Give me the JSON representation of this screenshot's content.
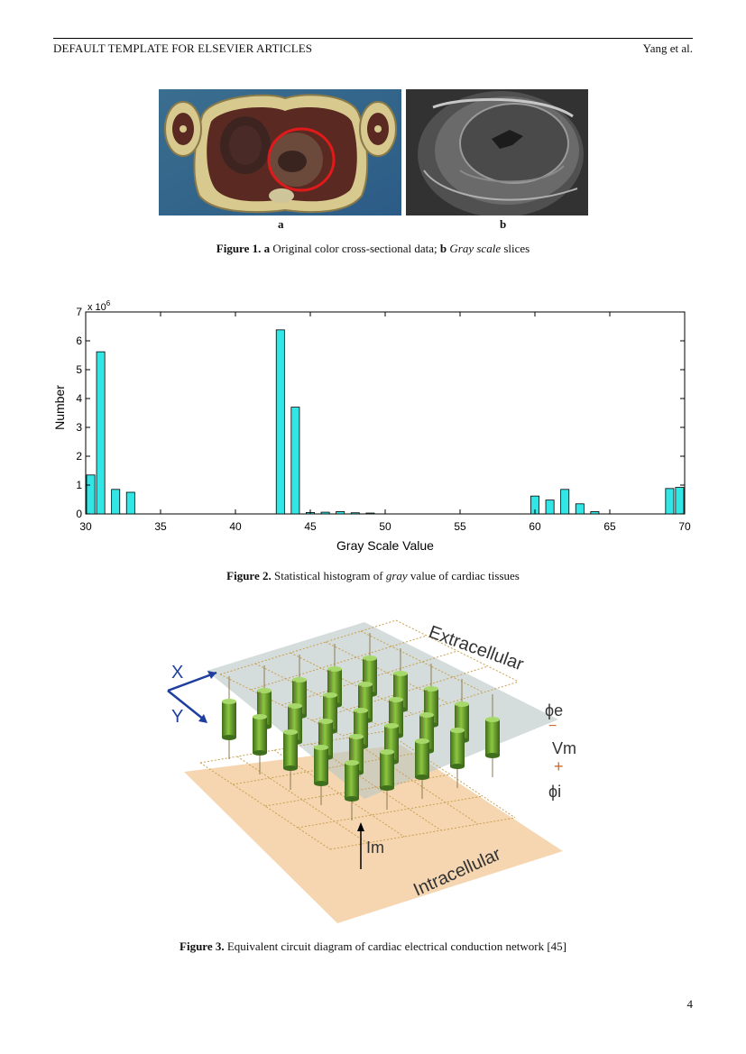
{
  "header": {
    "left": "DEFAULT TEMPLATE FOR ELSEVIER ARTICLES",
    "right": "Yang et al."
  },
  "figure1": {
    "label_a": "a",
    "label_b": "b",
    "caption_num": "Figure 1.",
    "caption_a": "a",
    "caption_mid": " Original color cross-sectional data; ",
    "caption_b": "b",
    "caption_italic": "Gray scale",
    "caption_end": " slices"
  },
  "figure2": {
    "caption_num": "Figure 2.",
    "caption_pre": " Statistical histogram of ",
    "caption_italic": "gray",
    "caption_post": " value of cardiac tissues"
  },
  "figure3": {
    "caption_num": "Figure 3.",
    "caption_text": " Equivalent circuit diagram of cardiac electrical conduction network [45]",
    "labels": {
      "extracellular": "Extracellular",
      "intracellular": "Intracellular",
      "x": "X",
      "y": "Y",
      "phi_e": "ϕe",
      "vm": "Vm",
      "plus": "+",
      "minus": "−",
      "phi_i": "ϕi",
      "im": "Im"
    }
  },
  "page_number": "4",
  "chart_data": {
    "type": "bar",
    "xlabel": "Gray Scale Value",
    "ylabel": "Number",
    "multiplier_label": "x 10",
    "multiplier_exp": "6",
    "xlim": [
      30,
      70
    ],
    "ylim": [
      0,
      7
    ],
    "xticks": [
      30,
      35,
      40,
      45,
      50,
      55,
      60,
      65,
      70
    ],
    "yticks": [
      0,
      1,
      2,
      3,
      4,
      5,
      6,
      7
    ],
    "bar_color": "#33e6e6",
    "x": [
      30,
      31,
      32,
      33,
      43,
      44,
      45,
      46,
      47,
      48,
      49,
      60,
      61,
      62,
      63,
      64,
      69,
      70
    ],
    "values": [
      1.35,
      5.62,
      0.85,
      0.75,
      6.38,
      3.7,
      0.05,
      0.06,
      0.08,
      0.04,
      0.03,
      0.62,
      0.48,
      0.85,
      0.35,
      0.08,
      0.88,
      0.92
    ]
  }
}
